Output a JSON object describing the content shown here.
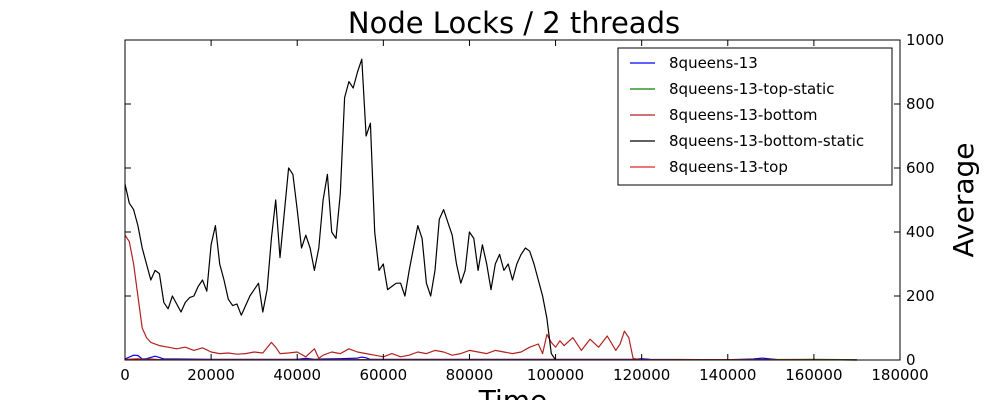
{
  "chart_data": {
    "type": "line",
    "title": "Node Locks / 2 threads",
    "xlabel": "Time",
    "ylabel": "Average",
    "xlim": [
      0,
      180000
    ],
    "ylim": [
      0,
      1000
    ],
    "xticks": [
      "0",
      "20000",
      "40000",
      "60000",
      "80000",
      "100000",
      "120000",
      "140000",
      "160000",
      "180000"
    ],
    "yticks": [
      "0",
      "200",
      "400",
      "600",
      "800",
      "1000"
    ],
    "y_axis_side": "right",
    "grid": false,
    "legend_position": "top-right",
    "series": [
      {
        "name": "8queens-13",
        "color": "#0000ff",
        "x": [
          0,
          2000,
          3000,
          4000,
          5000,
          6000,
          7000,
          8000,
          9000,
          12000,
          20000,
          40000,
          42000,
          44000,
          46000,
          50000,
          54000,
          55000,
          56000,
          57000,
          60000,
          80000,
          100000,
          118000,
          120000,
          122000,
          140000,
          146000,
          148000,
          150000,
          152000,
          160000,
          170000
        ],
        "y": [
          3,
          15,
          14,
          3,
          4,
          8,
          12,
          8,
          3,
          3,
          2,
          2,
          5,
          2,
          3,
          4,
          6,
          9,
          7,
          2,
          2,
          2,
          2,
          2,
          4,
          2,
          1,
          3,
          6,
          3,
          1,
          1,
          0
        ]
      },
      {
        "name": "8queens-13-top-static",
        "color": "#008000",
        "x": [
          0,
          5000,
          10000,
          20000,
          40000,
          60000,
          80000,
          100000,
          120000,
          140000,
          160000,
          170000
        ],
        "y": [
          1,
          2,
          1,
          1,
          1,
          1,
          1,
          1,
          1,
          1,
          2,
          1
        ]
      },
      {
        "name": "8queens-13-bottom",
        "color": "#b22222",
        "x": [
          0,
          1000,
          2000,
          3000,
          4000,
          5000,
          6000,
          8000,
          10000,
          12000,
          14000,
          16000,
          18000,
          20000,
          22000,
          24000,
          26000,
          28000,
          30000,
          32000,
          34000,
          35000,
          36000,
          38000,
          40000,
          42000,
          44000,
          45000,
          46000,
          48000,
          50000,
          52000,
          54000,
          56000,
          58000,
          60000,
          62000,
          64000,
          66000,
          68000,
          70000,
          72000,
          74000,
          76000,
          78000,
          80000,
          82000,
          84000,
          86000,
          88000,
          90000,
          92000,
          94000,
          96000,
          97000,
          98000,
          99000,
          100000,
          101000,
          102000,
          104000,
          106000,
          108000,
          110000,
          112000,
          114000,
          115000,
          116000,
          117000,
          118000,
          120000
        ],
        "y": [
          390,
          370,
          300,
          200,
          100,
          70,
          55,
          45,
          40,
          35,
          40,
          30,
          38,
          25,
          20,
          22,
          18,
          20,
          25,
          22,
          55,
          40,
          20,
          22,
          25,
          10,
          35,
          5,
          15,
          25,
          20,
          35,
          25,
          20,
          15,
          10,
          20,
          10,
          15,
          25,
          20,
          30,
          25,
          15,
          20,
          30,
          25,
          20,
          30,
          25,
          20,
          25,
          40,
          50,
          20,
          80,
          55,
          40,
          60,
          45,
          70,
          30,
          65,
          40,
          75,
          30,
          50,
          90,
          70,
          5,
          0
        ]
      },
      {
        "name": "8queens-13-bottom-static",
        "color": "#000000",
        "x": [
          0,
          1000,
          2000,
          3000,
          4000,
          5000,
          6000,
          7000,
          8000,
          9000,
          10000,
          11000,
          12000,
          13000,
          14000,
          15000,
          16000,
          17000,
          18000,
          19000,
          20000,
          21000,
          22000,
          23000,
          24000,
          25000,
          26000,
          27000,
          28000,
          29000,
          30000,
          31000,
          32000,
          33000,
          34000,
          35000,
          36000,
          37000,
          38000,
          39000,
          40000,
          41000,
          42000,
          43000,
          44000,
          45000,
          46000,
          47000,
          48000,
          49000,
          50000,
          51000,
          52000,
          53000,
          54000,
          55000,
          56000,
          57000,
          58000,
          59000,
          60000,
          61000,
          62000,
          63000,
          64000,
          65000,
          66000,
          67000,
          68000,
          69000,
          70000,
          71000,
          72000,
          73000,
          74000,
          75000,
          76000,
          77000,
          78000,
          79000,
          80000,
          81000,
          82000,
          83000,
          84000,
          85000,
          86000,
          87000,
          88000,
          89000,
          90000,
          91000,
          92000,
          93000,
          94000,
          95000,
          96000,
          97000,
          98000,
          99000,
          100000
        ],
        "y": [
          550,
          490,
          470,
          420,
          350,
          300,
          250,
          280,
          270,
          180,
          160,
          200,
          175,
          150,
          180,
          195,
          200,
          230,
          250,
          215,
          360,
          420,
          300,
          250,
          190,
          170,
          175,
          140,
          170,
          200,
          220,
          240,
          150,
          220,
          380,
          500,
          320,
          460,
          600,
          580,
          470,
          350,
          390,
          350,
          280,
          350,
          500,
          580,
          400,
          380,
          520,
          820,
          870,
          850,
          900,
          940,
          700,
          740,
          400,
          280,
          300,
          220,
          230,
          240,
          240,
          200,
          280,
          350,
          420,
          380,
          240,
          200,
          280,
          440,
          470,
          430,
          390,
          300,
          240,
          280,
          400,
          380,
          280,
          360,
          300,
          220,
          300,
          330,
          280,
          300,
          250,
          300,
          330,
          350,
          340,
          300,
          250,
          200,
          130,
          20,
          0
        ]
      },
      {
        "name": "8queens-13-top",
        "color": "#d62728",
        "x": [
          0,
          3000,
          4000,
          5000,
          6000,
          8000,
          20000,
          40000,
          60000,
          80000,
          100000,
          120000,
          140000,
          160000,
          170000
        ],
        "y": [
          2,
          4,
          2,
          1,
          3,
          1,
          1,
          1,
          1,
          1,
          1,
          1,
          1,
          1,
          0
        ]
      }
    ]
  }
}
